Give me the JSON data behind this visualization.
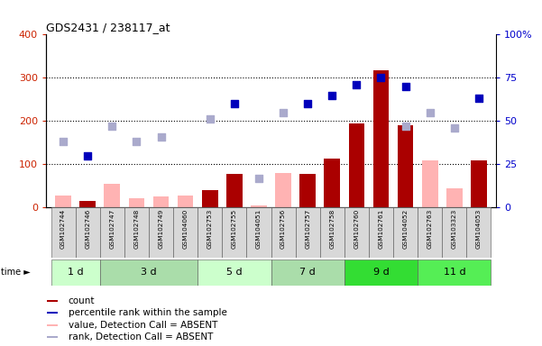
{
  "title": "GDS2431 / 238117_at",
  "samples": [
    "GSM102744",
    "GSM102746",
    "GSM102747",
    "GSM102748",
    "GSM102749",
    "GSM104060",
    "GSM102753",
    "GSM102755",
    "GSM104051",
    "GSM102756",
    "GSM102757",
    "GSM102758",
    "GSM102760",
    "GSM102761",
    "GSM104052",
    "GSM102763",
    "GSM103323",
    "GSM104053"
  ],
  "count_present": [
    null,
    15,
    null,
    null,
    null,
    null,
    40,
    78,
    null,
    null,
    78,
    113,
    195,
    318,
    191,
    null,
    null,
    110
  ],
  "count_absent": [
    28,
    null,
    55,
    22,
    25,
    27,
    null,
    null,
    5,
    80,
    null,
    null,
    null,
    null,
    null,
    110,
    45,
    null
  ],
  "pct_present": [
    null,
    30,
    null,
    null,
    null,
    null,
    null,
    60,
    null,
    null,
    60,
    65,
    71,
    75,
    70,
    null,
    null,
    63
  ],
  "pct_absent": [
    38,
    null,
    47,
    38,
    41,
    null,
    51,
    null,
    17,
    55,
    null,
    null,
    null,
    null,
    47,
    55,
    46,
    null
  ],
  "ylim_left": [
    0,
    400
  ],
  "ylim_right": [
    0,
    100
  ],
  "left_ticks": [
    0,
    100,
    200,
    300,
    400
  ],
  "right_ticks": [
    0,
    25,
    50,
    75,
    100
  ],
  "grid_values": [
    100,
    200,
    300
  ],
  "bar_present_color": "#aa0000",
  "bar_absent_color": "#ffb3b3",
  "dot_present_color": "#0000bb",
  "dot_absent_color": "#aaaacc",
  "group_configs": [
    {
      "label": "1 d",
      "start": 0,
      "end": 1,
      "color": "#ccffcc"
    },
    {
      "label": "3 d",
      "start": 2,
      "end": 5,
      "color": "#aaddaa"
    },
    {
      "label": "5 d",
      "start": 6,
      "end": 8,
      "color": "#ccffcc"
    },
    {
      "label": "7 d",
      "start": 9,
      "end": 11,
      "color": "#aaddaa"
    },
    {
      "label": "9 d",
      "start": 12,
      "end": 14,
      "color": "#33dd33"
    },
    {
      "label": "11 d",
      "start": 15,
      "end": 17,
      "color": "#55ee55"
    }
  ],
  "legend": [
    {
      "color": "#aa0000",
      "label": "count"
    },
    {
      "color": "#0000bb",
      "label": "percentile rank within the sample"
    },
    {
      "color": "#ffb3b3",
      "label": "value, Detection Call = ABSENT"
    },
    {
      "color": "#aaaacc",
      "label": "rank, Detection Call = ABSENT"
    }
  ]
}
